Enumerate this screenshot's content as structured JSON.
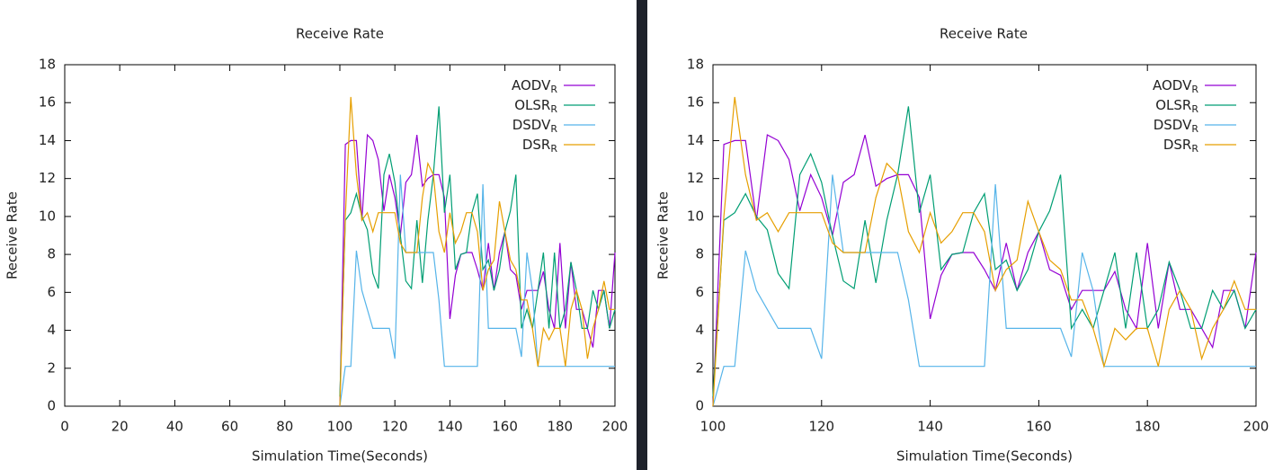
{
  "chart_data": [
    {
      "type": "line",
      "title": "Receive Rate",
      "x_label": "Simulation Time(Seconds)",
      "y_label": "Receive Rate",
      "xlim": [
        0,
        200
      ],
      "ylim": [
        0,
        18
      ],
      "xticks": [
        0,
        20,
        40,
        60,
        80,
        100,
        120,
        140,
        160,
        180,
        200
      ],
      "yticks": [
        0,
        2,
        4,
        6,
        8,
        10,
        12,
        14,
        16,
        18
      ],
      "legend": "top right",
      "x": [
        100,
        102,
        104,
        106,
        108,
        110,
        112,
        114,
        116,
        118,
        120,
        122,
        124,
        126,
        128,
        130,
        132,
        134,
        136,
        138,
        140,
        142,
        144,
        146,
        148,
        150,
        152,
        154,
        156,
        158,
        160,
        162,
        164,
        166,
        168,
        170,
        172,
        174,
        176,
        178,
        180,
        182,
        184,
        186,
        188,
        190,
        192,
        194,
        196,
        198,
        200
      ],
      "series": [
        {
          "name": "AODVR",
          "color": "#9400d3",
          "values": [
            0,
            13.8,
            14,
            14,
            9.8,
            14.3,
            14,
            13,
            10.3,
            12.2,
            11,
            9,
            11.8,
            12.2,
            14.3,
            11.6,
            12,
            12.2,
            12.2,
            11,
            4.6,
            6.9,
            8,
            8.1,
            8.1,
            7.2,
            6.1,
            8.6,
            6.1,
            8.1,
            9.2,
            7.2,
            6.9,
            5.1,
            6.1,
            6.1,
            6.1,
            7.1,
            5.1,
            4.1,
            8.6,
            4.1,
            7.6,
            5.1,
            5.1,
            4.1,
            3.1,
            6.1,
            6.1,
            4.1,
            8.1
          ]
        },
        {
          "name": "OLSRR",
          "color": "#009e73",
          "values": [
            0.5,
            9.8,
            10.2,
            11.2,
            10,
            9.3,
            7,
            6.2,
            12.2,
            13.3,
            11.8,
            9,
            6.6,
            6.2,
            9.8,
            6.5,
            9.8,
            12.2,
            15.8,
            10.2,
            12.2,
            7.2,
            8,
            8.1,
            10.2,
            11.2,
            7.2,
            7.7,
            6.1,
            7.2,
            9.2,
            10.3,
            12.2,
            4.1,
            5.1,
            4.1,
            6.1,
            8.1,
            4.1,
            8.1,
            4.1,
            5.1,
            7.6,
            6.1,
            4.1,
            4.1,
            6.1,
            5.1,
            6.1,
            4.1,
            5.1
          ]
        },
        {
          "name": "DSDVR",
          "color": "#56b4e9",
          "values": [
            0,
            2.1,
            2.1,
            8.2,
            6.1,
            5.1,
            4.1,
            4.1,
            4.1,
            4.1,
            2.5,
            12.2,
            8.1,
            8.1,
            8.1,
            8.1,
            8.1,
            8.1,
            5.6,
            2.1,
            2.1,
            2.1,
            2.1,
            2.1,
            2.1,
            2.1,
            11.7,
            4.1,
            4.1,
            4.1,
            4.1,
            4.1,
            4.1,
            2.6,
            8.1,
            6.1,
            2.1,
            2.1,
            2.1,
            2.1,
            2.1,
            2.1,
            2.1,
            2.1,
            2.1,
            2.1,
            2.1,
            2.1,
            2.1,
            2.1,
            2.1
          ]
        },
        {
          "name": "DSRR",
          "color": "#e69f00",
          "values": [
            0,
            10,
            16.3,
            12.2,
            9.8,
            10.2,
            9.2,
            10.2,
            10.2,
            10.2,
            10.2,
            8.6,
            8.1,
            8.1,
            8.1,
            11,
            12.8,
            12.2,
            9.2,
            8.1,
            10.2,
            8.6,
            9.2,
            10.2,
            10.2,
            9.2,
            6.1,
            7.2,
            7.7,
            10.8,
            9.2,
            7.7,
            7.2,
            5.6,
            5.6,
            4.1,
            2.1,
            4.1,
            3.5,
            4.1,
            4.1,
            2.1,
            5.1,
            6.1,
            5.1,
            2.5,
            4.1,
            5.1,
            6.6,
            5.1,
            5.1
          ]
        }
      ]
    },
    {
      "type": "line",
      "title": "Receive Rate",
      "x_label": "Simulation Time(Seconds)",
      "y_label": "Receive Rate",
      "xlim": [
        100,
        200
      ],
      "ylim": [
        0,
        18
      ],
      "xticks": [
        100,
        120,
        140,
        160,
        180,
        200
      ],
      "yticks": [
        0,
        2,
        4,
        6,
        8,
        10,
        12,
        14,
        16,
        18
      ],
      "legend": "top right",
      "x": [
        100,
        102,
        104,
        106,
        108,
        110,
        112,
        114,
        116,
        118,
        120,
        122,
        124,
        126,
        128,
        130,
        132,
        134,
        136,
        138,
        140,
        142,
        144,
        146,
        148,
        150,
        152,
        154,
        156,
        158,
        160,
        162,
        164,
        166,
        168,
        170,
        172,
        174,
        176,
        178,
        180,
        182,
        184,
        186,
        188,
        190,
        192,
        194,
        196,
        198,
        200
      ],
      "series": [
        {
          "name": "AODVR",
          "color": "#9400d3",
          "values": [
            0,
            13.8,
            14,
            14,
            9.8,
            14.3,
            14,
            13,
            10.3,
            12.2,
            11,
            9,
            11.8,
            12.2,
            14.3,
            11.6,
            12,
            12.2,
            12.2,
            11,
            4.6,
            6.9,
            8,
            8.1,
            8.1,
            7.2,
            6.1,
            8.6,
            6.1,
            8.1,
            9.2,
            7.2,
            6.9,
            5.1,
            6.1,
            6.1,
            6.1,
            7.1,
            5.1,
            4.1,
            8.6,
            4.1,
            7.6,
            5.1,
            5.1,
            4.1,
            3.1,
            6.1,
            6.1,
            4.1,
            8.1
          ]
        },
        {
          "name": "OLSRR",
          "color": "#009e73",
          "values": [
            0.5,
            9.8,
            10.2,
            11.2,
            10,
            9.3,
            7,
            6.2,
            12.2,
            13.3,
            11.8,
            9,
            6.6,
            6.2,
            9.8,
            6.5,
            9.8,
            12.2,
            15.8,
            10.2,
            12.2,
            7.2,
            8,
            8.1,
            10.2,
            11.2,
            7.2,
            7.7,
            6.1,
            7.2,
            9.2,
            10.3,
            12.2,
            4.1,
            5.1,
            4.1,
            6.1,
            8.1,
            4.1,
            8.1,
            4.1,
            5.1,
            7.6,
            6.1,
            4.1,
            4.1,
            6.1,
            5.1,
            6.1,
            4.1,
            5.1
          ]
        },
        {
          "name": "DSDVR",
          "color": "#56b4e9",
          "values": [
            0,
            2.1,
            2.1,
            8.2,
            6.1,
            5.1,
            4.1,
            4.1,
            4.1,
            4.1,
            2.5,
            12.2,
            8.1,
            8.1,
            8.1,
            8.1,
            8.1,
            8.1,
            5.6,
            2.1,
            2.1,
            2.1,
            2.1,
            2.1,
            2.1,
            2.1,
            11.7,
            4.1,
            4.1,
            4.1,
            4.1,
            4.1,
            4.1,
            2.6,
            8.1,
            6.1,
            2.1,
            2.1,
            2.1,
            2.1,
            2.1,
            2.1,
            2.1,
            2.1,
            2.1,
            2.1,
            2.1,
            2.1,
            2.1,
            2.1,
            2.1
          ]
        },
        {
          "name": "DSRR",
          "color": "#e69f00",
          "values": [
            0,
            10,
            16.3,
            12.2,
            9.8,
            10.2,
            9.2,
            10.2,
            10.2,
            10.2,
            10.2,
            8.6,
            8.1,
            8.1,
            8.1,
            11,
            12.8,
            12.2,
            9.2,
            8.1,
            10.2,
            8.6,
            9.2,
            10.2,
            10.2,
            9.2,
            6.1,
            7.2,
            7.7,
            10.8,
            9.2,
            7.7,
            7.2,
            5.6,
            5.6,
            4.1,
            2.1,
            4.1,
            3.5,
            4.1,
            4.1,
            2.1,
            5.1,
            6.1,
            5.1,
            2.5,
            4.1,
            5.1,
            6.6,
            5.1,
            5.1
          ]
        }
      ]
    }
  ]
}
